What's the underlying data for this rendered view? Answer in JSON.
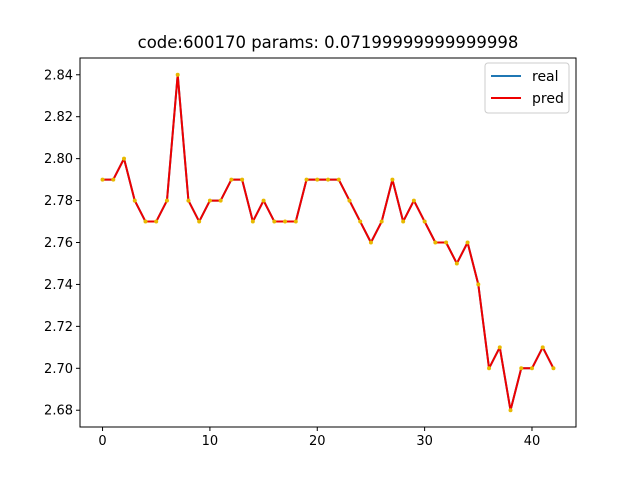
{
  "chart_data": {
    "type": "line",
    "title": "code:600170 params: 0.07199999999999998",
    "xlabel": "",
    "ylabel": "",
    "x": [
      0,
      1,
      2,
      3,
      4,
      5,
      6,
      7,
      8,
      9,
      10,
      11,
      12,
      13,
      14,
      15,
      16,
      17,
      18,
      19,
      20,
      21,
      22,
      23,
      24,
      25,
      26,
      27,
      28,
      29,
      30,
      31,
      32,
      33,
      34,
      35,
      36,
      37,
      38,
      39,
      40,
      41,
      42
    ],
    "series": [
      {
        "name": "real",
        "color": "#1f77b4",
        "values": [
          2.79,
          2.79,
          2.8,
          2.78,
          2.77,
          2.77,
          2.78,
          2.84,
          2.78,
          2.77,
          2.78,
          2.78,
          2.79,
          2.79,
          2.77,
          2.78,
          2.77,
          2.77,
          2.77,
          2.79,
          2.79,
          2.79,
          2.79,
          2.78,
          2.77,
          2.76,
          2.77,
          2.79,
          2.77,
          2.78,
          2.77,
          2.76,
          2.76,
          2.75,
          2.76,
          2.74,
          2.7,
          2.71,
          2.68,
          2.7,
          2.7,
          2.71,
          2.7
        ]
      },
      {
        "name": "pred",
        "color": "#ee0000",
        "values": [
          2.79,
          2.79,
          2.8,
          2.78,
          2.77,
          2.77,
          2.78,
          2.84,
          2.78,
          2.77,
          2.78,
          2.78,
          2.79,
          2.79,
          2.77,
          2.78,
          2.77,
          2.77,
          2.77,
          2.79,
          2.79,
          2.79,
          2.79,
          2.78,
          2.77,
          2.76,
          2.77,
          2.79,
          2.77,
          2.78,
          2.77,
          2.76,
          2.76,
          2.75,
          2.76,
          2.74,
          2.7,
          2.71,
          2.68,
          2.7,
          2.7,
          2.71,
          2.7
        ]
      }
    ],
    "marker_color": "#e8b900",
    "xlim": [
      -2.1,
      44.1
    ],
    "ylim": [
      2.672,
      2.848
    ],
    "x_ticks": [
      0,
      10,
      20,
      30,
      40
    ],
    "x_tick_labels": [
      "0",
      "10",
      "20",
      "30",
      "40"
    ],
    "y_ticks": [
      2.68,
      2.7,
      2.72,
      2.74,
      2.76,
      2.78,
      2.8,
      2.82,
      2.84
    ],
    "y_tick_labels": [
      "2.68",
      "2.70",
      "2.72",
      "2.74",
      "2.76",
      "2.78",
      "2.80",
      "2.82",
      "2.84"
    ],
    "legend_position": "top-right",
    "grid": false
  }
}
